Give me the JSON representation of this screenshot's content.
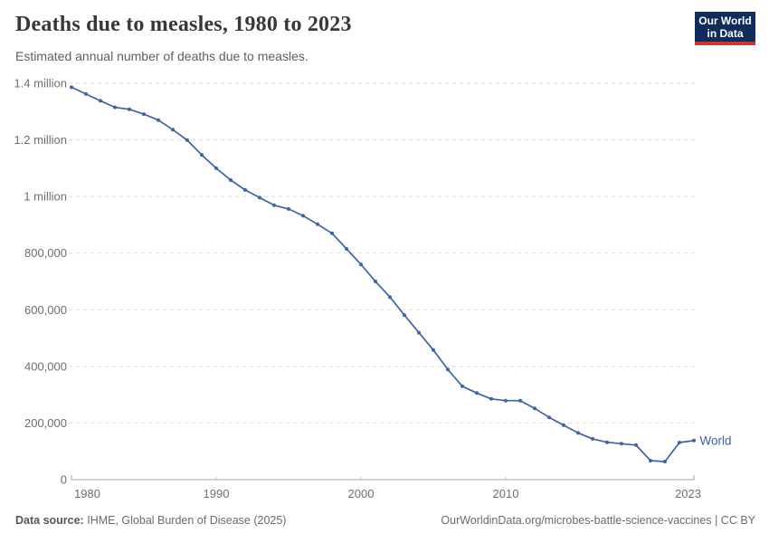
{
  "header": {
    "title": "Deaths due to measles, 1980 to 2023",
    "subtitle": "Estimated annual number of deaths due to measles.",
    "logo": {
      "line1": "Our World",
      "line2": "in Data",
      "bg_color": "#102c5a",
      "accent_color": "#d0352b"
    }
  },
  "chart_data": {
    "type": "line",
    "title": "Deaths due to measles, 1980 to 2023",
    "xlabel": "",
    "ylabel": "",
    "x": [
      1980,
      1981,
      1982,
      1983,
      1984,
      1985,
      1986,
      1987,
      1988,
      1989,
      1990,
      1991,
      1992,
      1993,
      1994,
      1995,
      1996,
      1997,
      1998,
      1999,
      2000,
      2001,
      2002,
      2003,
      2004,
      2005,
      2006,
      2007,
      2008,
      2009,
      2010,
      2011,
      2012,
      2013,
      2014,
      2015,
      2016,
      2017,
      2018,
      2019,
      2020,
      2021,
      2022,
      2023
    ],
    "series": [
      {
        "name": "World",
        "color": "#3e62aa",
        "values": [
          1386000,
          1362000,
          1338000,
          1315000,
          1308000,
          1291000,
          1270000,
          1236000,
          1199000,
          1147000,
          1100000,
          1058000,
          1023000,
          996000,
          969000,
          956000,
          932000,
          902000,
          870000,
          815000,
          760000,
          700000,
          645000,
          581000,
          519000,
          458000,
          389000,
          330000,
          306000,
          285000,
          279000,
          279000,
          252000,
          220000,
          192000,
          165000,
          144000,
          132000,
          127000,
          122000,
          67000,
          64000,
          131000,
          138000
        ]
      }
    ],
    "xlim": [
      1980,
      2023
    ],
    "ylim": [
      0,
      1400000
    ],
    "yticks": [
      {
        "value": 0,
        "label": "0"
      },
      {
        "value": 200000,
        "label": "200,000"
      },
      {
        "value": 400000,
        "label": "400,000"
      },
      {
        "value": 600000,
        "label": "600,000"
      },
      {
        "value": 800000,
        "label": "800,000"
      },
      {
        "value": 1000000,
        "label": "1 million"
      },
      {
        "value": 1200000,
        "label": "1.2 million"
      },
      {
        "value": 1400000,
        "label": "1.4 million"
      }
    ],
    "xticks": [
      {
        "value": 1980,
        "label": "1980"
      },
      {
        "value": 1990,
        "label": "1990"
      },
      {
        "value": 2000,
        "label": "2000"
      },
      {
        "value": 2010,
        "label": "2010"
      },
      {
        "value": 2023,
        "label": "2023"
      }
    ],
    "grid": "horizontal-dashed",
    "legend": "line-end-label",
    "marker": "point-per-year"
  },
  "footer": {
    "source_label": "Data source:",
    "source_text": "IHME, Global Burden of Disease (2025)",
    "url": "OurWorldinData.org/microbes-battle-science-vaccines",
    "separator": " | ",
    "license": "CC BY"
  },
  "colors": {
    "title": "#383838",
    "subtitle": "#5f5f5f",
    "tick_label": "#6e6e6e",
    "gridline": "#dadada",
    "axis": "#a3a3a3",
    "series_world": "#3e62aa"
  }
}
